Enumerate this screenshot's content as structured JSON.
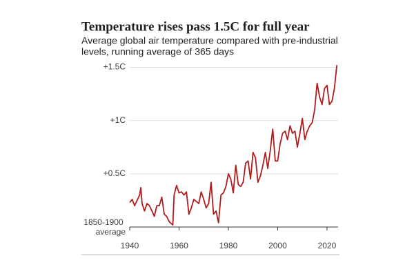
{
  "chart_data": {
    "type": "line",
    "title": "Temperature rises pass 1.5C for full year",
    "subtitle": [
      "Average global air temperature compared with pre-industrial",
      "levels, running average of 365 days"
    ],
    "x": [
      1940,
      1941,
      1942,
      1943,
      1944,
      1944.5,
      1945,
      1946,
      1947,
      1948,
      1949,
      1950,
      1951,
      1952,
      1953,
      1954,
      1955,
      1956,
      1957.5,
      1958,
      1959,
      1960,
      1961,
      1962,
      1963,
      1964,
      1965,
      1966,
      1967,
      1968,
      1969,
      1970,
      1971,
      1972,
      1973,
      1974,
      1975,
      1976,
      1977,
      1978,
      1979,
      1980,
      1981,
      1982,
      1983,
      1984,
      1985,
      1986,
      1987,
      1988,
      1989,
      1990,
      1991,
      1992,
      1993,
      1994,
      1995,
      1996,
      1997,
      1998,
      1999,
      2000,
      2001,
      2002,
      2003,
      2004,
      2005,
      2006,
      2007,
      2008,
      2009,
      2010,
      2011,
      2012,
      2013,
      2014,
      2015,
      2016,
      2017,
      2018,
      2019,
      2020,
      2021,
      2022,
      2023,
      2024
    ],
    "series": [
      {
        "color": "#b01c1c",
        "values": [
          0.23,
          0.26,
          0.2,
          0.25,
          0.3,
          0.37,
          0.22,
          0.15,
          0.22,
          0.2,
          0.15,
          0.1,
          0.2,
          0.2,
          0.28,
          0.12,
          0.1,
          0.05,
          0.02,
          0.3,
          0.39,
          0.32,
          0.33,
          0.3,
          0.33,
          0.12,
          0.18,
          0.26,
          0.24,
          0.22,
          0.33,
          0.26,
          0.18,
          0.22,
          0.42,
          0.12,
          0.15,
          0.04,
          0.3,
          0.32,
          0.38,
          0.5,
          0.45,
          0.32,
          0.58,
          0.4,
          0.38,
          0.42,
          0.6,
          0.62,
          0.45,
          0.7,
          0.65,
          0.42,
          0.48,
          0.58,
          0.7,
          0.55,
          0.72,
          0.92,
          0.62,
          0.62,
          0.78,
          0.88,
          0.9,
          0.82,
          0.95,
          0.88,
          0.9,
          0.75,
          0.88,
          1.02,
          0.82,
          0.9,
          0.95,
          0.98,
          1.1,
          1.35,
          1.22,
          1.15,
          1.3,
          1.33,
          1.15,
          1.18,
          1.3,
          1.52
        ]
      }
    ],
    "xlim": [
      1940,
      2024.5
    ],
    "xticks": [
      1940,
      1960,
      1980,
      2000,
      2020
    ],
    "ylim": [
      0,
      1.6
    ],
    "yticks": [
      {
        "value": 0,
        "label": "1850-1900 average"
      },
      {
        "value": 0.5,
        "label": "+0.5C"
      },
      {
        "value": 1,
        "label": "+1C"
      },
      {
        "value": 1.5,
        "label": "+1.5C"
      }
    ],
    "grid": true
  }
}
